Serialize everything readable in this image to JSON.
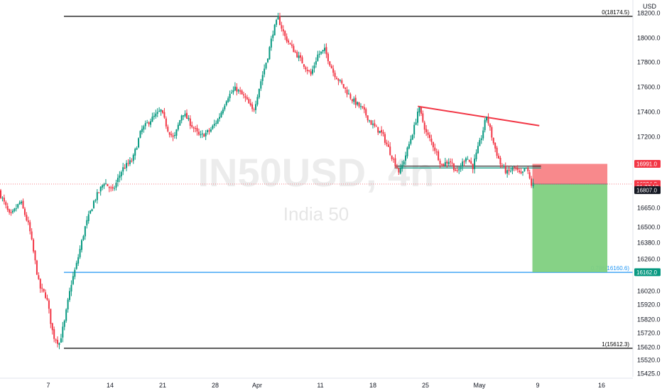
{
  "chart_data": {
    "type": "candlestick",
    "symbol_watermark": "IN50USD, 4h",
    "name_watermark": "India 50",
    "currency": "USD",
    "ylim": [
      15425,
      18220
    ],
    "y_ticks": [
      18200,
      18000,
      17800,
      17600,
      17400,
      17200,
      16650,
      16500,
      16380,
      16260,
      16020,
      15920,
      15820,
      15720,
      15620,
      15520,
      15425
    ],
    "x_ticks": [
      "7",
      "14",
      "21",
      "28",
      "Apr",
      "11",
      "18",
      "25",
      "May",
      "9",
      "16"
    ],
    "x_axis_span_days": 70,
    "price_path": [
      {
        "t": 0,
        "p": 16780
      },
      {
        "t": 1.3,
        "p": 16580
      },
      {
        "t": 2.5,
        "p": 16700
      },
      {
        "t": 3.5,
        "p": 16500
      },
      {
        "t": 4.7,
        "p": 16050
      },
      {
        "t": 5.5,
        "p": 15980
      },
      {
        "t": 6.3,
        "p": 15700
      },
      {
        "t": 7,
        "p": 15650
      },
      {
        "t": 7.6,
        "p": 15800
      },
      {
        "t": 8.4,
        "p": 16080
      },
      {
        "t": 9,
        "p": 16220
      },
      {
        "t": 10,
        "p": 16500
      },
      {
        "t": 11,
        "p": 16700
      },
      {
        "t": 12.2,
        "p": 16850
      },
      {
        "t": 13.2,
        "p": 16780
      },
      {
        "t": 14.3,
        "p": 16950
      },
      {
        "t": 15.5,
        "p": 17020
      },
      {
        "t": 16.5,
        "p": 17250
      },
      {
        "t": 17.5,
        "p": 17330
      },
      {
        "t": 18.8,
        "p": 17410
      },
      {
        "t": 19.6,
        "p": 17260
      },
      {
        "t": 20.3,
        "p": 17180
      },
      {
        "t": 21.3,
        "p": 17400
      },
      {
        "t": 22.3,
        "p": 17300
      },
      {
        "t": 23.3,
        "p": 17200
      },
      {
        "t": 24.5,
        "p": 17250
      },
      {
        "t": 25.5,
        "p": 17350
      },
      {
        "t": 26.5,
        "p": 17520
      },
      {
        "t": 27.5,
        "p": 17590
      },
      {
        "t": 28.7,
        "p": 17500
      },
      {
        "t": 29.5,
        "p": 17400
      },
      {
        "t": 30.4,
        "p": 17650
      },
      {
        "t": 31.2,
        "p": 17850
      },
      {
        "t": 31.8,
        "p": 18050
      },
      {
        "t": 32.4,
        "p": 18160
      },
      {
        "t": 33.2,
        "p": 18010
      },
      {
        "t": 34,
        "p": 17920
      },
      {
        "t": 35,
        "p": 17820
      },
      {
        "t": 36.2,
        "p": 17700
      },
      {
        "t": 37,
        "p": 17860
      },
      {
        "t": 37.8,
        "p": 17900
      },
      {
        "t": 38.8,
        "p": 17720
      },
      {
        "t": 39.8,
        "p": 17620
      },
      {
        "t": 41,
        "p": 17500
      },
      {
        "t": 42.2,
        "p": 17420
      },
      {
        "t": 43.3,
        "p": 17300
      },
      {
        "t": 44.5,
        "p": 17220
      },
      {
        "t": 45.6,
        "p": 17050
      },
      {
        "t": 46.5,
        "p": 16920
      },
      {
        "t": 47.5,
        "p": 17120
      },
      {
        "t": 48.3,
        "p": 17300
      },
      {
        "t": 48.7,
        "p": 17440
      },
      {
        "t": 49.6,
        "p": 17230
      },
      {
        "t": 50.5,
        "p": 17120
      },
      {
        "t": 51.4,
        "p": 16980
      },
      {
        "t": 52.3,
        "p": 17020
      },
      {
        "t": 53.2,
        "p": 16920
      },
      {
        "t": 54.2,
        "p": 17050
      },
      {
        "t": 55,
        "p": 16970
      },
      {
        "t": 56,
        "p": 17200
      },
      {
        "t": 56.6,
        "p": 17370
      },
      {
        "t": 57.4,
        "p": 17150
      },
      {
        "t": 58.2,
        "p": 16990
      },
      {
        "t": 59,
        "p": 16920
      },
      {
        "t": 59.8,
        "p": 16960
      },
      {
        "t": 60.6,
        "p": 16900
      },
      {
        "t": 61.2,
        "p": 16960
      },
      {
        "t": 61.8,
        "p": 16830
      }
    ],
    "levels": [
      {
        "label": "0(18174.5)",
        "price": 18174.5,
        "color": "#000000"
      },
      {
        "label": "0.786(16160.6)",
        "price": 16160.6,
        "color": "#2196f3"
      },
      {
        "label": "1(15612.3)",
        "price": 15612.3,
        "color": "#000000"
      }
    ],
    "trendline": {
      "color": "#f23645",
      "from": {
        "t": 48.5,
        "p": 17445
      },
      "to": {
        "t": 62.6,
        "p": 17290
      }
    },
    "support_line": {
      "price": 16965,
      "t_from": 45.8,
      "t_to": 62.8
    },
    "position": {
      "entry": 16834.8,
      "stop": 16991.0,
      "target": 16162.0,
      "t_from": 61.8,
      "t_to": 70.5
    },
    "price_badges": [
      {
        "label": "16991.0",
        "price": 16991.0,
        "color": "#f23645"
      },
      {
        "label": "16834.8",
        "price": 16834.8,
        "color": "#f23645"
      },
      {
        "label": "01:27:18",
        "price": 16812,
        "color": "#f23645"
      },
      {
        "label": "16807.0",
        "price": 16788,
        "color": "#131722"
      },
      {
        "label": "16162.0",
        "price": 16162.0,
        "color": "#089981"
      }
    ],
    "colors": {
      "up": "#089981",
      "down": "#f23645",
      "stop_zone": "#f77c80",
      "target_zone": "#7fd07f"
    }
  }
}
